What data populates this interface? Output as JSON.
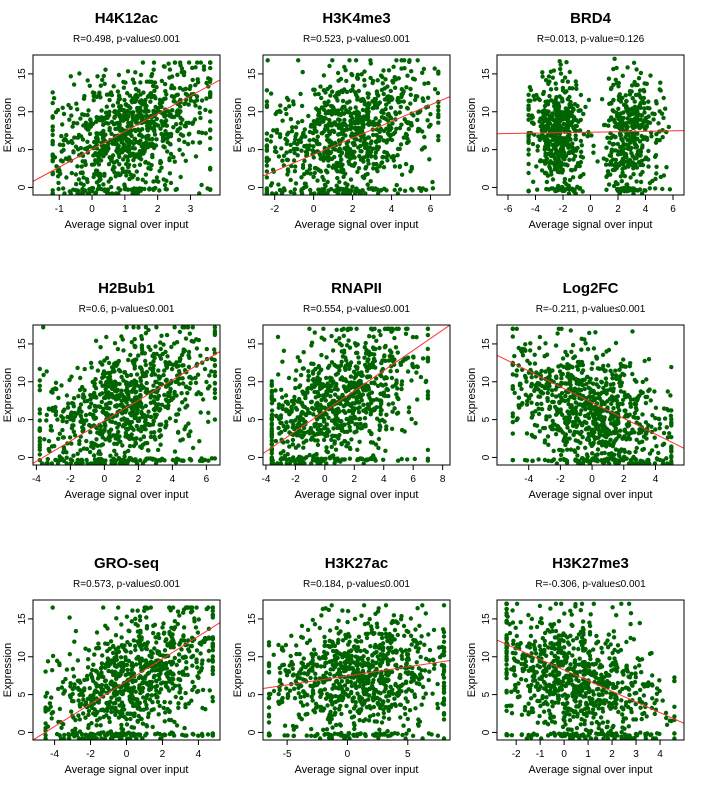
{
  "colors": {
    "points": "#006400",
    "fit_line": "#ff3333",
    "axes": "#000000"
  },
  "chart_data": [
    {
      "type": "scatter",
      "title": "H4K12ac",
      "subtitle": "R=0.498, p-value≤0.001",
      "xlabel": "Average signal over input",
      "ylabel": "Expression",
      "xlim": [
        -1.8,
        3.9
      ],
      "ylim": [
        -1,
        17.5
      ],
      "xticks": [
        -1,
        0,
        1,
        2,
        3
      ],
      "yticks": [
        0,
        5,
        10,
        15
      ],
      "fit": {
        "x": [
          -1.8,
          3.9
        ],
        "y": [
          0.8,
          14.2
        ]
      },
      "cloud": {
        "x_range": [
          -1.2,
          3.6
        ],
        "y_range": [
          -0.8,
          16.5
        ],
        "x_center": 1.2,
        "y_center": 7.5
      }
    },
    {
      "type": "scatter",
      "title": "H3K4me3",
      "subtitle": "R=0.523, p-value≤0.001",
      "xlabel": "Average signal over input",
      "ylabel": "Expression",
      "xlim": [
        -2.6,
        7.0
      ],
      "ylim": [
        -1,
        17.5
      ],
      "xticks": [
        -2,
        0,
        2,
        4,
        6
      ],
      "yticks": [
        0,
        5,
        10,
        15
      ],
      "fit": {
        "x": [
          -2.6,
          7.0
        ],
        "y": [
          1.5,
          12.0
        ]
      },
      "cloud": {
        "x_range": [
          -2.4,
          6.4
        ],
        "y_range": [
          -0.8,
          16.8
        ],
        "x_center": 2.0,
        "y_center": 7.5
      }
    },
    {
      "type": "scatter",
      "title": "BRD4",
      "subtitle": "R=0.013, p-value=0.126",
      "xlabel": "Average signal over input",
      "ylabel": "Expression",
      "xlim": [
        -6.8,
        6.8
      ],
      "ylim": [
        -1,
        17.5
      ],
      "xticks": [
        -6,
        -4,
        -2,
        0,
        2,
        4,
        6
      ],
      "yticks": [
        0,
        5,
        10,
        15
      ],
      "fit": {
        "x": [
          -6.8,
          6.8
        ],
        "y": [
          7.1,
          7.5
        ]
      },
      "cloud": {
        "x_range": [
          -4.5,
          5.8
        ],
        "y_range": [
          -0.8,
          17.0
        ],
        "x_center": 0.0,
        "y_center": 7.3
      }
    },
    {
      "type": "scatter",
      "title": "H2Bub1",
      "subtitle": "R=0.6, p-value≤0.001",
      "xlabel": "Average signal over input",
      "ylabel": "Expression",
      "xlim": [
        -4.2,
        6.8
      ],
      "ylim": [
        -1,
        17.5
      ],
      "xticks": [
        -4,
        -2,
        0,
        2,
        4,
        6
      ],
      "yticks": [
        0,
        5,
        10,
        15
      ],
      "fit": {
        "x": [
          -4.2,
          6.8
        ],
        "y": [
          -0.8,
          14.0
        ]
      },
      "cloud": {
        "x_range": [
          -3.8,
          6.5
        ],
        "y_range": [
          -0.8,
          17.2
        ],
        "x_center": 1.5,
        "y_center": 7.5
      }
    },
    {
      "type": "scatter",
      "title": "RNAPII",
      "subtitle": "R=0.554, p-value≤0.001",
      "xlabel": "Average signal over input",
      "ylabel": "Expression",
      "xlim": [
        -4.2,
        8.5
      ],
      "ylim": [
        -1,
        17.5
      ],
      "xticks": [
        -4,
        -2,
        0,
        2,
        4,
        6,
        8
      ],
      "yticks": [
        0,
        5,
        10,
        15
      ],
      "fit": {
        "x": [
          -4.2,
          8.5
        ],
        "y": [
          0.5,
          17.5
        ]
      },
      "cloud": {
        "x_range": [
          -3.6,
          7.0
        ],
        "y_range": [
          -0.8,
          17.0
        ],
        "x_center": 1.0,
        "y_center": 7.5
      }
    },
    {
      "type": "scatter",
      "title": "Log2FC",
      "subtitle": "R=-0.211, p-value≤0.001",
      "xlabel": "Average signal over input",
      "ylabel": "Expression",
      "xlim": [
        -6.0,
        5.8
      ],
      "ylim": [
        -1,
        17.5
      ],
      "xticks": [
        -4,
        -2,
        0,
        2,
        4
      ],
      "yticks": [
        0,
        5,
        10,
        15
      ],
      "fit": {
        "x": [
          -6.0,
          5.8
        ],
        "y": [
          13.5,
          1.2
        ]
      },
      "cloud": {
        "x_range": [
          -5.0,
          5.0
        ],
        "y_range": [
          -0.8,
          17.0
        ],
        "x_center": 0.0,
        "y_center": 6.5
      }
    },
    {
      "type": "scatter",
      "title": "GRO-seq",
      "subtitle": "R=0.573, p-value≤0.001",
      "xlabel": "Average signal over input",
      "ylabel": "Expression",
      "xlim": [
        -5.2,
        5.2
      ],
      "ylim": [
        -1,
        17.5
      ],
      "xticks": [
        -4,
        -2,
        0,
        2,
        4
      ],
      "yticks": [
        0,
        5,
        10,
        15
      ],
      "fit": {
        "x": [
          -5.2,
          5.2
        ],
        "y": [
          -1.0,
          14.5
        ]
      },
      "cloud": {
        "x_range": [
          -4.5,
          4.8
        ],
        "y_range": [
          -0.8,
          16.5
        ],
        "x_center": 0.5,
        "y_center": 7.0
      }
    },
    {
      "type": "scatter",
      "title": "H3K27ac",
      "subtitle": "R=0.184, p-value≤0.001",
      "xlabel": "Average signal over input",
      "ylabel": "Expression",
      "xlim": [
        -7.0,
        8.5
      ],
      "ylim": [
        -1,
        17.5
      ],
      "xticks": [
        -5,
        0,
        5
      ],
      "yticks": [
        0,
        5,
        10,
        15
      ],
      "fit": {
        "x": [
          -7.0,
          8.5
        ],
        "y": [
          5.8,
          9.5
        ]
      },
      "cloud": {
        "x_range": [
          -6.5,
          8.0
        ],
        "y_range": [
          -0.8,
          16.8
        ],
        "x_center": 1.0,
        "y_center": 7.5
      }
    },
    {
      "type": "scatter",
      "title": "H3K27me3",
      "subtitle": "R=-0.306, p-value≤0.001",
      "xlabel": "Average signal over input",
      "ylabel": "Expression",
      "xlim": [
        -2.8,
        5.0
      ],
      "ylim": [
        -1,
        17.5
      ],
      "xticks": [
        -2,
        -1,
        0,
        1,
        2,
        3,
        4
      ],
      "yticks": [
        0,
        5,
        10,
        15
      ],
      "fit": {
        "x": [
          -2.8,
          5.0
        ],
        "y": [
          12.2,
          1.2
        ]
      },
      "cloud": {
        "x_range": [
          -2.4,
          4.6
        ],
        "y_range": [
          -0.8,
          17.0
        ],
        "x_center": 0.6,
        "y_center": 7.0
      }
    }
  ]
}
